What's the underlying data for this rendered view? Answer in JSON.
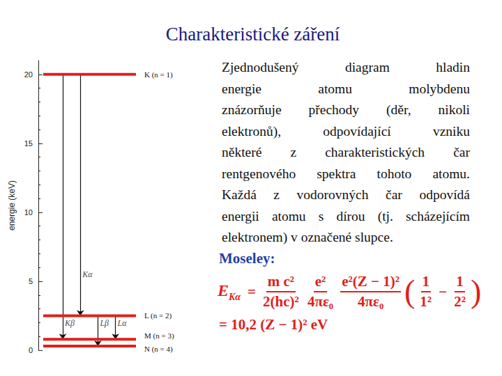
{
  "slide": {
    "title": "Charakteristické záření",
    "paragraph": [
      "Zjednodušený diagram hladin",
      "energie atomu molybdenu",
      "znázorňuje přechody (děr, nikoli",
      "elektronů), odpovídající vzniku",
      "některé z charakteristických čar",
      "rentgenového spektra tohoto atomu.",
      "Každá z vodorovných čar odpovídá",
      "energii atomu s dírou (tj. scházejícím",
      "elektronem) v označené slupce."
    ],
    "formula_title": "Moseley:",
    "formula": {
      "lhs": "E",
      "lhs_sub": "Kα",
      "operator": "=",
      "minus": "−",
      "fractions": [
        {
          "num": "m c²",
          "den": "2(hc)²"
        },
        {
          "num": "e²",
          "den": "4πε₀"
        },
        {
          "num": "e²(Z − 1)²",
          "den": "4πε₀"
        }
      ],
      "bracket": [
        {
          "num": "1",
          "den": "1²"
        },
        {
          "num": "1",
          "den": "2²"
        }
      ],
      "result": "= 10,2 (Z − 1)² eV"
    }
  },
  "chart_data": {
    "type": "energy_levels",
    "ylabel": "energie (keV)",
    "ylim": [
      0,
      21
    ],
    "yticks": [
      0,
      5,
      10,
      15,
      20
    ],
    "color": "#e0201b",
    "levels": [
      {
        "name": "K (n = 1)",
        "value": 20.0
      },
      {
        "name": "L (n = 2)",
        "value": 2.5
      },
      {
        "name": "M (n = 3)",
        "value": 0.8
      },
      {
        "name": "N (n = 4)",
        "value": 0.3
      }
    ],
    "transitions": [
      {
        "name": "Kβ",
        "from": "K (n = 1)",
        "to": "M (n = 3)"
      },
      {
        "name": "Kα",
        "from": "K (n = 1)",
        "to": "L (n = 2)"
      },
      {
        "name": "Lβ",
        "from": "L (n = 2)",
        "to": "N (n = 4)"
      },
      {
        "name": "Lα",
        "from": "L (n = 2)",
        "to": "M (n = 3)"
      }
    ]
  }
}
